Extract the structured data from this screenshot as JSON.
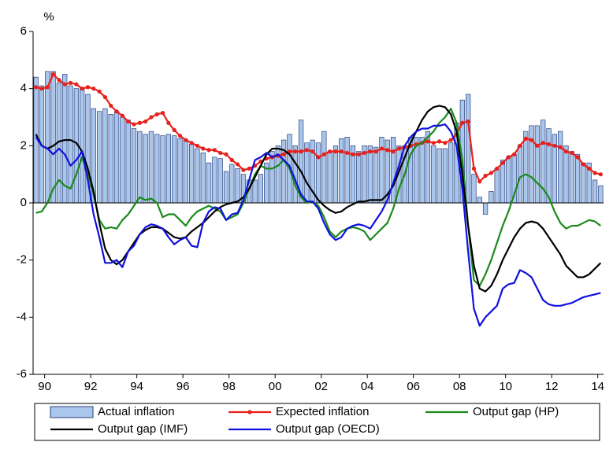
{
  "chart_data": {
    "type": "combo",
    "y_label": "%",
    "legend": "bottom",
    "xlim": [
      1989.875,
      2014.625
    ],
    "xticks": [
      {
        "value": 1990.375,
        "label": "90"
      },
      {
        "value": 1992.375,
        "label": "92"
      },
      {
        "value": 1994.375,
        "label": "94"
      },
      {
        "value": 1996.375,
        "label": "96"
      },
      {
        "value": 1998.375,
        "label": "98"
      },
      {
        "value": 2000.375,
        "label": "00"
      },
      {
        "value": 2002.375,
        "label": "02"
      },
      {
        "value": 2004.375,
        "label": "04"
      },
      {
        "value": 2006.375,
        "label": "06"
      },
      {
        "value": 2008.375,
        "label": "08"
      },
      {
        "value": 2010.375,
        "label": "10"
      },
      {
        "value": 2012.375,
        "label": "12"
      },
      {
        "value": 2014.375,
        "label": "14"
      }
    ],
    "ylim": [
      -6,
      6
    ],
    "yticks": [
      -6,
      -4,
      -2,
      0,
      2,
      4,
      6
    ],
    "x": [
      1990,
      1990.25,
      1990.5,
      1990.75,
      1991,
      1991.25,
      1991.5,
      1991.75,
      1992,
      1992.25,
      1992.5,
      1992.75,
      1993,
      1993.25,
      1993.5,
      1993.75,
      1994,
      1994.25,
      1994.5,
      1994.75,
      1995,
      1995.25,
      1995.5,
      1995.75,
      1996,
      1996.25,
      1996.5,
      1996.75,
      1997,
      1997.25,
      1997.5,
      1997.75,
      1998,
      1998.25,
      1998.5,
      1998.75,
      1999,
      1999.25,
      1999.5,
      1999.75,
      2000,
      2000.25,
      2000.5,
      2000.75,
      2001,
      2001.25,
      2001.5,
      2001.75,
      2002,
      2002.25,
      2002.5,
      2002.75,
      2003,
      2003.25,
      2003.5,
      2003.75,
      2004,
      2004.25,
      2004.5,
      2004.75,
      2005,
      2005.25,
      2005.5,
      2005.75,
      2006,
      2006.25,
      2006.5,
      2006.75,
      2007,
      2007.25,
      2007.5,
      2007.75,
      2008,
      2008.25,
      2008.5,
      2008.75,
      2009,
      2009.25,
      2009.5,
      2009.75,
      2010,
      2010.25,
      2010.5,
      2010.75,
      2011,
      2011.25,
      2011.5,
      2011.75,
      2012,
      2012.25,
      2012.5,
      2012.75,
      2013,
      2013.25,
      2013.5,
      2013.75,
      2014,
      2014.25,
      2014.5
    ],
    "series": [
      {
        "name": "Actual inflation",
        "type": "bar",
        "color": "#a9c6ec",
        "values": [
          4.4,
          4.1,
          4.6,
          4.6,
          4.2,
          4.5,
          4.1,
          4.0,
          4.0,
          3.8,
          3.3,
          3.2,
          3.3,
          3.1,
          3.2,
          3.0,
          2.9,
          2.6,
          2.5,
          2.4,
          2.5,
          2.4,
          2.35,
          2.4,
          2.35,
          2.25,
          2.2,
          2.05,
          1.9,
          1.75,
          1.4,
          1.6,
          1.55,
          1.1,
          1.35,
          1.2,
          1.0,
          0.8,
          0.8,
          1.0,
          1.4,
          1.8,
          2.0,
          2.2,
          2.4,
          2.0,
          2.9,
          2.1,
          2.2,
          2.1,
          2.5,
          1.8,
          2.0,
          2.25,
          2.3,
          2.0,
          1.8,
          2.0,
          2.0,
          1.95,
          2.3,
          2.2,
          2.3,
          2.0,
          2.0,
          2.3,
          2.3,
          2.3,
          2.5,
          2.0,
          1.9,
          1.9,
          2.1,
          2.8,
          3.6,
          3.8,
          1.0,
          0.2,
          -0.4,
          0.4,
          1.2,
          1.5,
          1.6,
          1.7,
          2.0,
          2.5,
          2.7,
          2.7,
          2.9,
          2.6,
          2.4,
          2.5,
          2.0,
          1.8,
          1.7,
          1.4,
          1.4,
          0.8,
          0.6
        ]
      },
      {
        "name": "Expected inflation",
        "type": "line",
        "marker": true,
        "color": "#e8201c",
        "values": [
          4.05,
          4.0,
          4.05,
          4.5,
          4.3,
          4.15,
          4.2,
          4.15,
          4.0,
          4.05,
          4.0,
          3.9,
          3.7,
          3.4,
          3.2,
          3.05,
          2.85,
          2.75,
          2.8,
          2.85,
          3.0,
          3.1,
          3.15,
          2.8,
          2.55,
          2.35,
          2.2,
          2.1,
          2.0,
          1.9,
          1.85,
          1.85,
          1.75,
          1.7,
          1.5,
          1.35,
          1.15,
          1.2,
          1.3,
          1.45,
          1.55,
          1.6,
          1.65,
          1.7,
          1.8,
          1.8,
          1.8,
          1.85,
          1.8,
          1.6,
          1.7,
          1.8,
          1.8,
          1.8,
          1.75,
          1.7,
          1.7,
          1.75,
          1.8,
          1.8,
          1.9,
          1.85,
          1.8,
          1.9,
          1.95,
          2.0,
          2.05,
          2.1,
          2.15,
          2.1,
          2.15,
          2.1,
          2.2,
          2.4,
          2.8,
          2.85,
          1.2,
          0.75,
          0.95,
          1.05,
          1.2,
          1.4,
          1.6,
          1.7,
          2.0,
          2.25,
          2.2,
          2.0,
          2.1,
          2.05,
          2.0,
          1.95,
          1.8,
          1.75,
          1.6,
          1.35,
          1.2,
          1.05,
          1.0
        ]
      },
      {
        "name": "Output gap (HP)",
        "type": "line",
        "color": "#1a8a1a",
        "values": [
          -0.35,
          -0.3,
          0.0,
          0.5,
          0.8,
          0.6,
          0.5,
          1.0,
          1.6,
          1.0,
          0.3,
          -0.6,
          -0.9,
          -0.85,
          -0.9,
          -0.6,
          -0.4,
          -0.1,
          0.2,
          0.1,
          0.15,
          0.0,
          -0.5,
          -0.4,
          -0.4,
          -0.6,
          -0.8,
          -0.5,
          -0.3,
          -0.2,
          -0.1,
          -0.2,
          -0.3,
          -0.6,
          -0.5,
          -0.4,
          0.0,
          0.5,
          1.0,
          1.3,
          1.2,
          1.2,
          1.3,
          1.5,
          1.2,
          0.6,
          0.2,
          0.0,
          0.05,
          -0.1,
          -0.5,
          -1.0,
          -1.2,
          -1.0,
          -0.9,
          -0.85,
          -0.9,
          -1.0,
          -1.3,
          -1.1,
          -0.9,
          -0.7,
          -0.2,
          0.5,
          1.0,
          1.7,
          2.0,
          2.1,
          2.3,
          2.5,
          2.8,
          3.0,
          3.3,
          2.8,
          1.5,
          -0.8,
          -2.7,
          -2.9,
          -2.5,
          -2.0,
          -1.4,
          -0.8,
          -0.3,
          0.3,
          0.9,
          1.0,
          0.9,
          0.7,
          0.5,
          0.2,
          -0.3,
          -0.7,
          -0.9,
          -0.8,
          -0.8,
          -0.7,
          -0.6,
          -0.65,
          -0.8
        ]
      },
      {
        "name": "Output gap (IMF)",
        "type": "line",
        "color": "#000000",
        "values": [
          2.4,
          2.0,
          1.9,
          2.0,
          2.15,
          2.2,
          2.2,
          2.1,
          1.8,
          1.2,
          0.4,
          -0.7,
          -1.6,
          -2.0,
          -2.15,
          -2.0,
          -1.7,
          -1.4,
          -1.1,
          -0.95,
          -0.85,
          -0.85,
          -0.9,
          -1.05,
          -1.2,
          -1.25,
          -1.2,
          -1.0,
          -0.85,
          -0.7,
          -0.5,
          -0.3,
          -0.15,
          -0.05,
          0.0,
          0.05,
          0.2,
          0.5,
          0.9,
          1.3,
          1.7,
          1.9,
          1.9,
          1.85,
          1.7,
          1.4,
          1.1,
          0.7,
          0.4,
          0.1,
          -0.1,
          -0.25,
          -0.35,
          -0.3,
          -0.15,
          -0.05,
          0.05,
          0.05,
          0.1,
          0.1,
          0.1,
          0.3,
          0.6,
          1.1,
          1.6,
          2.1,
          2.5,
          2.9,
          3.2,
          3.35,
          3.4,
          3.35,
          3.1,
          2.5,
          1.0,
          -0.8,
          -2.2,
          -3.0,
          -3.1,
          -2.9,
          -2.5,
          -2.0,
          -1.6,
          -1.2,
          -0.9,
          -0.7,
          -0.65,
          -0.7,
          -0.9,
          -1.2,
          -1.5,
          -1.8,
          -2.2,
          -2.4,
          -2.6,
          -2.6,
          -2.5,
          -2.3,
          -2.1
        ]
      },
      {
        "name": "Output gap (OECD)",
        "type": "line",
        "color": "#1010e0",
        "values": [
          2.3,
          2.0,
          1.9,
          1.7,
          1.9,
          1.7,
          1.3,
          1.5,
          1.8,
          0.8,
          -0.4,
          -1.2,
          -2.1,
          -2.1,
          -2.0,
          -2.25,
          -1.7,
          -1.5,
          -1.1,
          -0.85,
          -0.75,
          -0.8,
          -0.9,
          -1.2,
          -1.45,
          -1.3,
          -1.2,
          -1.5,
          -1.55,
          -0.7,
          -0.3,
          -0.15,
          -0.2,
          -0.6,
          -0.4,
          -0.35,
          0.1,
          0.8,
          1.5,
          1.6,
          1.75,
          1.6,
          1.7,
          1.5,
          1.3,
          0.8,
          0.3,
          0.05,
          0.05,
          -0.2,
          -0.7,
          -1.1,
          -1.3,
          -1.2,
          -0.9,
          -0.8,
          -0.75,
          -0.8,
          -0.9,
          -0.6,
          -0.3,
          0.1,
          0.7,
          1.3,
          2.0,
          2.3,
          2.5,
          2.6,
          2.6,
          2.7,
          2.7,
          2.75,
          2.5,
          2.0,
          0.5,
          -1.7,
          -3.7,
          -4.3,
          -4.0,
          -3.8,
          -3.6,
          -3.0,
          -2.85,
          -2.8,
          -2.35,
          -2.45,
          -2.6,
          -3.0,
          -3.4,
          -3.55,
          -3.6,
          -3.6,
          -3.55,
          -3.5,
          -3.4,
          -3.3,
          -3.25,
          -3.2,
          -3.15
        ]
      }
    ]
  }
}
